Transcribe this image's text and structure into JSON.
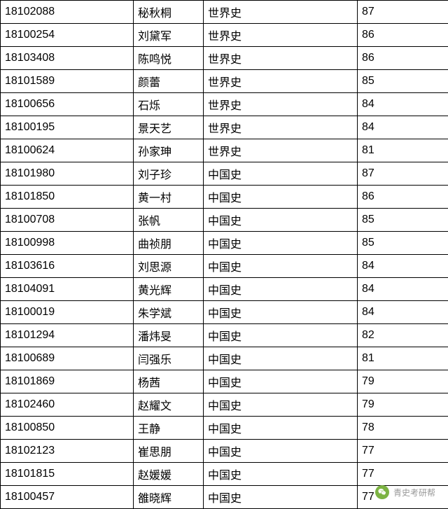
{
  "table": {
    "rows": [
      {
        "id": "18102088",
        "name": "秘秋桐",
        "subject": "世界史",
        "score": "87"
      },
      {
        "id": "18100254",
        "name": "刘黛军",
        "subject": "世界史",
        "score": "86"
      },
      {
        "id": "18103408",
        "name": "陈鸣悦",
        "subject": "世界史",
        "score": "86"
      },
      {
        "id": "18101589",
        "name": "颜蕾",
        "subject": "世界史",
        "score": "85"
      },
      {
        "id": "18100656",
        "name": "石烁",
        "subject": "世界史",
        "score": "84"
      },
      {
        "id": "18100195",
        "name": "景天艺",
        "subject": "世界史",
        "score": "84"
      },
      {
        "id": "18100624",
        "name": "孙家珅",
        "subject": "世界史",
        "score": "81"
      },
      {
        "id": "18101980",
        "name": "刘子珍",
        "subject": "中国史",
        "score": "87"
      },
      {
        "id": "18101850",
        "name": "黄一村",
        "subject": "中国史",
        "score": "86"
      },
      {
        "id": "18100708",
        "name": "张帆",
        "subject": "中国史",
        "score": "85"
      },
      {
        "id": "18100998",
        "name": "曲祯朋",
        "subject": "中国史",
        "score": "85"
      },
      {
        "id": "18103616",
        "name": "刘思源",
        "subject": "中国史",
        "score": "84"
      },
      {
        "id": "18104091",
        "name": "黄光辉",
        "subject": "中国史",
        "score": "84"
      },
      {
        "id": "18100019",
        "name": "朱学斌",
        "subject": "中国史",
        "score": "84"
      },
      {
        "id": "18101294",
        "name": "潘炜旻",
        "subject": "中国史",
        "score": "82"
      },
      {
        "id": "18100689",
        "name": "闫强乐",
        "subject": "中国史",
        "score": "81"
      },
      {
        "id": "18101869",
        "name": "杨茜",
        "subject": "中国史",
        "score": "79"
      },
      {
        "id": "18102460",
        "name": "赵耀文",
        "subject": "中国史",
        "score": "79"
      },
      {
        "id": "18100850",
        "name": "王静",
        "subject": "中国史",
        "score": "78"
      },
      {
        "id": "18102123",
        "name": "崔思朋",
        "subject": "中国史",
        "score": "77"
      },
      {
        "id": "18101815",
        "name": "赵媛媛",
        "subject": "中国史",
        "score": "77"
      },
      {
        "id": "18100457",
        "name": "雒晓辉",
        "subject": "中国史",
        "score": "77"
      }
    ]
  },
  "watermark": {
    "text": "青史考研帮"
  }
}
